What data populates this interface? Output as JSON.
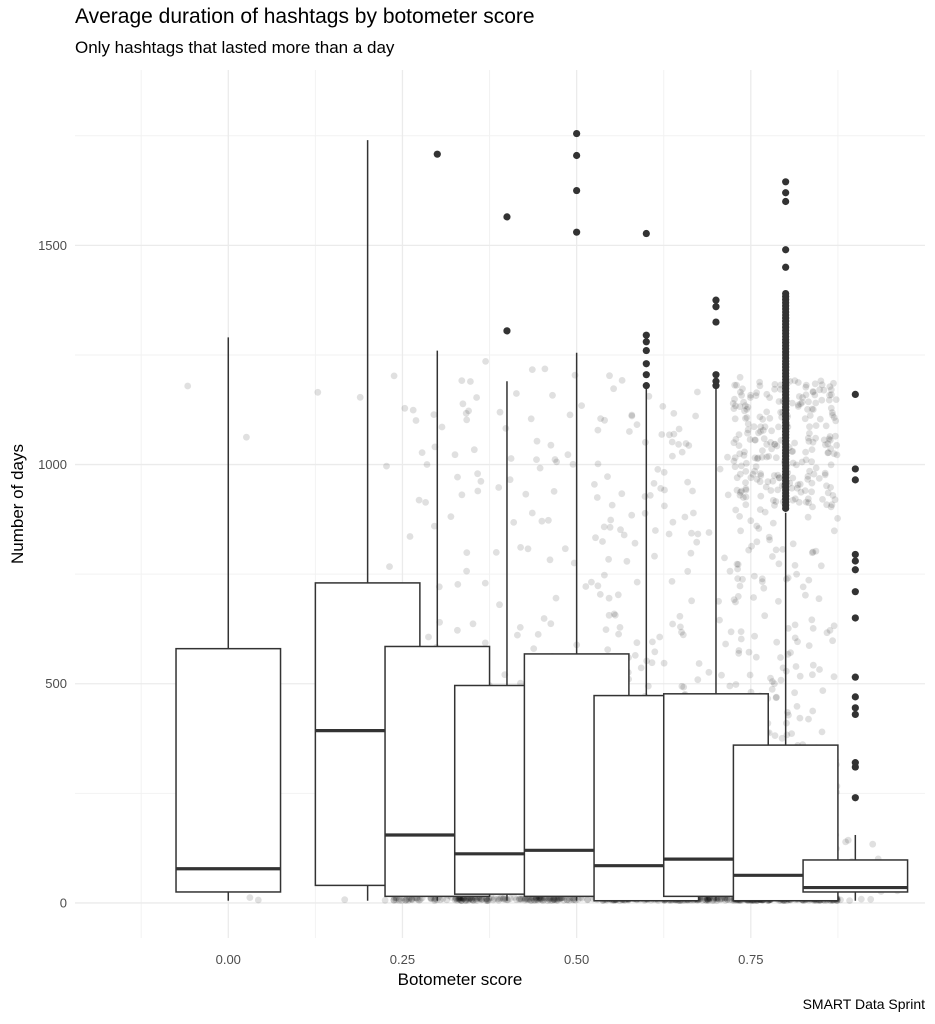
{
  "title": "Average duration of hashtags by botometer score",
  "subtitle": "Only hashtags that lasted more than a day",
  "caption": "SMART Data Sprint",
  "chart_data": {
    "type": "boxplot",
    "title": "Average duration of hashtags by botometer score",
    "subtitle": "Only hashtags that lasted more than a day",
    "xlabel": "Botometer score",
    "ylabel": "Number of days",
    "xlim": [
      -0.22,
      1.0
    ],
    "ylim": [
      -80,
      1900
    ],
    "xticks": [
      {
        "value": 0.0,
        "label": "0.00"
      },
      {
        "value": 0.25,
        "label": "0.25"
      },
      {
        "value": 0.5,
        "label": "0.50"
      },
      {
        "value": 0.75,
        "label": "0.75"
      }
    ],
    "yticks": [
      {
        "value": 0,
        "label": "0"
      },
      {
        "value": 500,
        "label": "500"
      },
      {
        "value": 1000,
        "label": "1000"
      },
      {
        "value": 1500,
        "label": "1500"
      }
    ],
    "grid": true,
    "boxes": [
      {
        "x": 0.0,
        "lower_whisker": 5,
        "q1": 25,
        "median": 78,
        "q3": 580,
        "upper_whisker": 1290,
        "outliers": []
      },
      {
        "x": 0.2,
        "lower_whisker": 5,
        "q1": 40,
        "median": 393,
        "q3": 730,
        "upper_whisker": 1740,
        "outliers": []
      },
      {
        "x": 0.3,
        "lower_whisker": 5,
        "q1": 15,
        "median": 155,
        "q3": 585,
        "upper_whisker": 1260,
        "outliers": [
          1708
        ]
      },
      {
        "x": 0.4,
        "lower_whisker": 5,
        "q1": 20,
        "median": 112,
        "q3": 496,
        "upper_whisker": 1190,
        "outliers": [
          1305,
          1565
        ]
      },
      {
        "x": 0.5,
        "lower_whisker": 5,
        "q1": 15,
        "median": 120,
        "q3": 568,
        "upper_whisker": 1255,
        "outliers": [
          1530,
          1625,
          1705,
          1755
        ]
      },
      {
        "x": 0.6,
        "lower_whisker": 5,
        "q1": 5,
        "median": 85,
        "q3": 473,
        "upper_whisker": 1175,
        "outliers": [
          1180,
          1205,
          1230,
          1260,
          1280,
          1295,
          1527
        ]
      },
      {
        "x": 0.7,
        "lower_whisker": 5,
        "q1": 15,
        "median": 100,
        "q3": 477,
        "upper_whisker": 1175,
        "outliers": [
          1180,
          1190,
          1205,
          1325,
          1360,
          1375
        ]
      },
      {
        "x": 0.8,
        "lower_whisker": 5,
        "q1": 5,
        "median": 63,
        "q3": 360,
        "upper_whisker": 890,
        "outliers": [
          1450,
          1490,
          1600,
          1620,
          1645
        ]
      },
      {
        "x": 0.9,
        "lower_whisker": 5,
        "q1": 25,
        "median": 35,
        "q3": 98,
        "upper_whisker": 155,
        "outliers": [
          240,
          310,
          320,
          430,
          445,
          470,
          515,
          650,
          710,
          760,
          780,
          795,
          965,
          990,
          1160
        ]
      }
    ]
  }
}
